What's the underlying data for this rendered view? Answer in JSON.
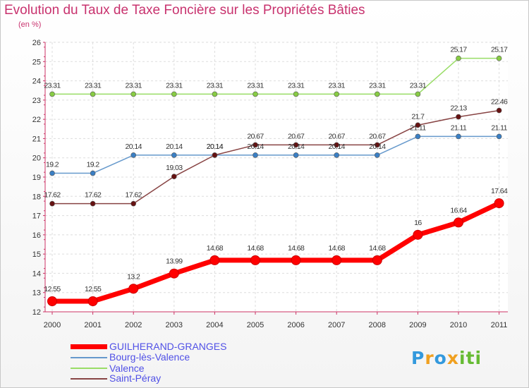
{
  "chart_data": {
    "type": "line",
    "title": "Evolution du Taux de Taxe Foncière sur les Propriétés Bâties",
    "ylabel": "(en %)",
    "xlabel": "",
    "x": [
      "2000",
      "2001",
      "2002",
      "2003",
      "2004",
      "2005",
      "2006",
      "2007",
      "2008",
      "2009",
      "2010",
      "2011"
    ],
    "ylim": [
      12,
      26
    ],
    "yticks": [
      "12",
      "13",
      "14",
      "15",
      "16",
      "17",
      "18",
      "19",
      "20",
      "21",
      "22",
      "23",
      "24",
      "25",
      "26"
    ],
    "grid": true,
    "legend_position": "bottom-left",
    "series": [
      {
        "name": "GUILHERAND-GRANGES",
        "color": "#ff0000",
        "marker_edge": "#cc0000",
        "width": 7,
        "radius": 6.5,
        "values": [
          12.55,
          12.55,
          13.2,
          13.99,
          14.68,
          14.68,
          14.68,
          14.68,
          14.68,
          16,
          16.64,
          17.64
        ],
        "labels": [
          "12.55",
          "12.55",
          "13.2",
          "13.99",
          "14.68",
          "14.68",
          "14.68",
          "14.68",
          "14.68",
          "16",
          "16.64",
          "17.64"
        ]
      },
      {
        "name": "Bourg-lès-Valence",
        "color": "#6699cc",
        "marker_fill": "#3a7fc4",
        "width": 1.5,
        "radius": 3.5,
        "values": [
          19.2,
          19.2,
          20.14,
          20.14,
          20.14,
          20.14,
          20.14,
          20.14,
          20.14,
          21.11,
          21.11,
          21.11
        ],
        "labels": [
          "19.2",
          "19.2",
          "20.14",
          "20.14",
          "20.14",
          "20.14",
          "20.14",
          "20.14",
          "20.14",
          "21.11",
          "21.11",
          "21.11"
        ]
      },
      {
        "name": "Valence",
        "color": "#99dd66",
        "marker_fill": "#88cc44",
        "width": 1.5,
        "radius": 3.5,
        "values": [
          23.31,
          23.31,
          23.31,
          23.31,
          23.31,
          23.31,
          23.31,
          23.31,
          23.31,
          23.31,
          25.17,
          25.17
        ],
        "labels": [
          "23.31",
          "23.31",
          "23.31",
          "23.31",
          "23.31",
          "23.31",
          "23.31",
          "23.31",
          "23.31",
          "23.31",
          "25.17",
          "25.17"
        ]
      },
      {
        "name": "Saint-Péray",
        "color": "#884444",
        "marker_fill": "#661111",
        "width": 1.5,
        "radius": 3.5,
        "values": [
          17.62,
          17.62,
          17.62,
          19.03,
          20.14,
          20.67,
          20.67,
          20.67,
          20.67,
          21.7,
          22.13,
          22.46
        ],
        "labels": [
          "17.62",
          "17.62",
          "17.62",
          "19.03",
          "20.14",
          "20.67",
          "20.67",
          "20.67",
          "20.67",
          "21.7",
          "22.13",
          "22.46"
        ]
      }
    ]
  },
  "branding": {
    "letters": [
      "P",
      "r",
      "o",
      "x",
      "i",
      "t",
      "i"
    ],
    "colors": [
      "#3399dd",
      "#f0a020",
      "#3399dd",
      "#f0a020",
      "#66bb33",
      "#66bb33",
      "#66bb33"
    ]
  }
}
